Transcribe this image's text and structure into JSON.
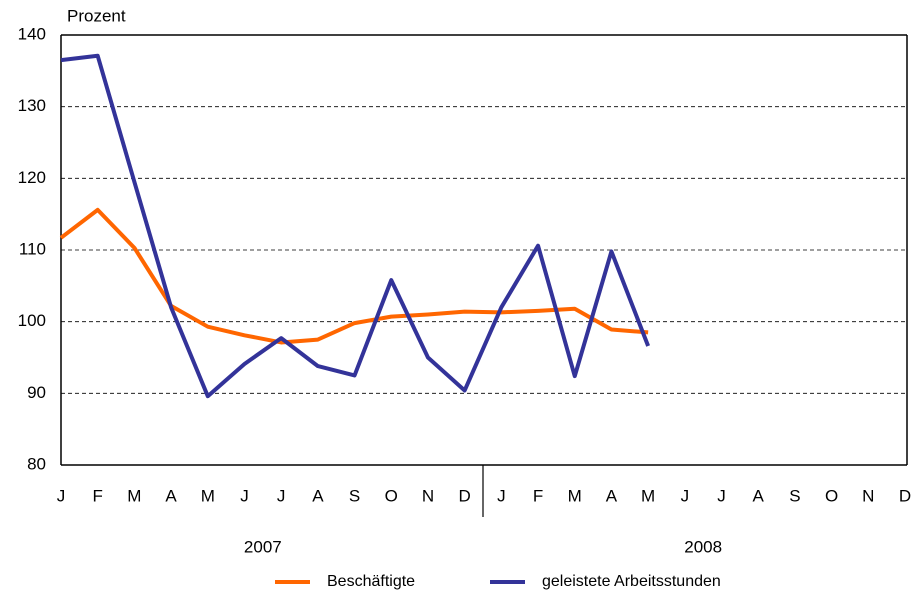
{
  "chart_data": {
    "type": "line",
    "y_label": "Prozent",
    "categories": [
      "J",
      "F",
      "M",
      "A",
      "M",
      "J",
      "J",
      "A",
      "S",
      "O",
      "N",
      "D",
      "J",
      "F",
      "M",
      "A",
      "M",
      "J",
      "J",
      "A",
      "S",
      "O",
      "N",
      "D"
    ],
    "years": [
      "2007",
      "2008"
    ],
    "series": [
      {
        "name": "Beschäftigte",
        "color": "#ff6600",
        "values": [
          111.7,
          115.6,
          110.3,
          102.2,
          99.3,
          98.1,
          97.1,
          97.5,
          99.8,
          100.7,
          101.0,
          101.4,
          101.3,
          101.5,
          101.8,
          98.9,
          98.5,
          null,
          null,
          null,
          null,
          null,
          null,
          null
        ]
      },
      {
        "name": "geleistete Arbeitsstunden",
        "color": "#333399",
        "values": [
          136.5,
          137.1,
          119.5,
          102.0,
          89.6,
          94.1,
          97.7,
          93.8,
          92.5,
          105.8,
          95.0,
          90.4,
          102.0,
          110.6,
          92.4,
          109.8,
          96.6,
          null,
          null,
          null,
          null,
          null,
          null,
          null
        ]
      }
    ],
    "ylim": [
      80,
      140
    ],
    "yticks": [
      80,
      90,
      100,
      110,
      120,
      130,
      140
    ],
    "grid": true
  }
}
